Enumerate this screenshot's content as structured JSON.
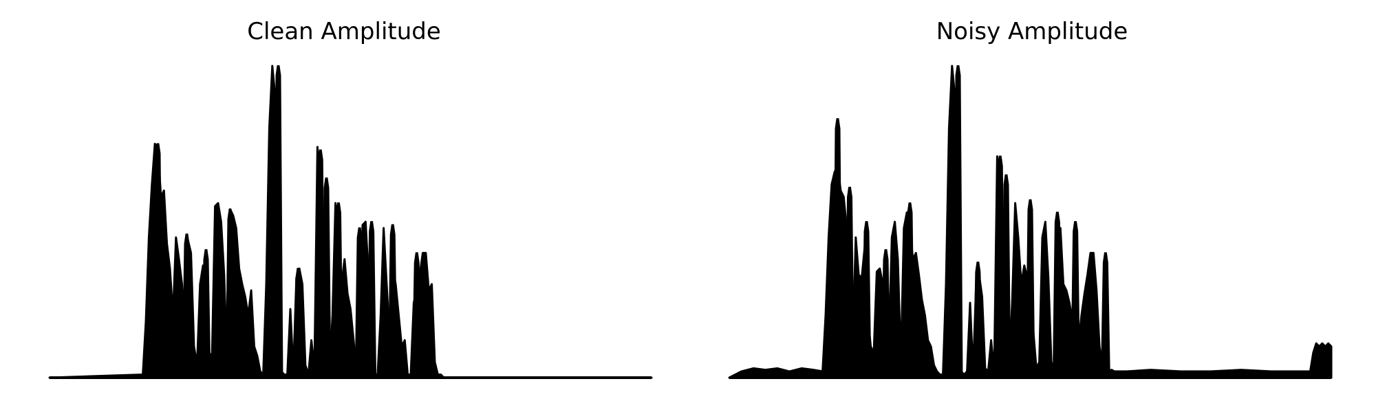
{
  "chart_data": [
    {
      "type": "area",
      "title": "Clean Amplitude",
      "xlabel": "",
      "ylabel": "",
      "axes_visible": false,
      "grid": false,
      "color": "#000000",
      "ylim": [
        0,
        1.0
      ],
      "envelope_x": [
        0,
        0.155,
        0.16,
        0.165,
        0.17,
        0.175,
        0.18,
        0.185,
        0.19,
        0.195,
        0.2,
        0.205,
        0.21,
        0.215,
        0.22,
        0.225,
        0.23,
        0.235,
        0.24,
        0.245,
        0.25,
        0.255,
        0.26,
        0.265,
        0.27,
        0.275,
        0.28,
        0.285,
        0.29,
        0.295,
        0.3,
        0.305,
        0.31,
        0.315,
        0.32,
        0.325,
        0.33,
        0.335,
        0.34,
        0.345,
        0.35,
        0.355,
        0.36,
        0.365,
        0.37,
        0.375,
        0.38,
        0.385,
        0.39,
        0.395,
        0.4,
        0.405,
        0.41,
        0.415,
        0.42,
        0.425,
        0.43,
        0.435,
        0.44,
        0.445,
        0.45,
        0.455,
        0.46,
        0.465,
        0.47,
        0.475,
        0.48,
        0.485,
        0.49,
        0.495,
        0.5,
        0.505,
        0.51,
        0.515,
        0.52,
        0.525,
        0.53,
        0.535,
        0.54,
        0.545,
        0.55,
        0.555,
        0.56,
        0.565,
        0.57,
        0.575,
        0.58,
        0.585,
        0.59,
        0.595,
        0.6,
        0.605,
        0.61,
        0.615,
        0.62,
        0.625,
        0.63,
        0.635,
        0.64,
        0.645,
        0.65,
        0.655,
        0.66,
        0.665,
        0.67,
        0.675,
        0.68,
        0.685,
        0.69,
        0.695,
        0.7,
        0.705,
        0.71,
        0.715,
        0.72,
        0.725,
        0.73,
        0.735,
        0.74,
        0.745,
        0.75,
        0.755,
        0.76,
        0.765,
        0.77,
        0.775,
        0.78,
        0.785,
        0.79,
        0.795,
        0.8,
        0.805,
        0.81,
        0.815,
        0.82,
        0.825,
        0.83,
        0.835,
        0.84,
        0.845,
        0.85,
        0.855,
        0.86,
        0.865,
        0.87,
        0.875,
        1.0
      ],
      "envelope_y": [
        0,
        0.01,
        0.18,
        0.45,
        0.62,
        0.75,
        0.74,
        0.58,
        0.6,
        0.43,
        0.35,
        0.2,
        0.45,
        0.38,
        0.3,
        0.12,
        0.44,
        0.4,
        0.1,
        0.04,
        0.3,
        0.36,
        0.3,
        0.06,
        0.08,
        0.55,
        0.56,
        0.5,
        0.33,
        0.05,
        0.54,
        0.52,
        0.48,
        0.35,
        0.3,
        0.26,
        0.2,
        0.28,
        0.1,
        0.07,
        0.02,
        0.01,
        0.3,
        0.8,
        1.0,
        0.9,
        0.3,
        0.02,
        0.01,
        0.01,
        0.22,
        0.02,
        0.32,
        0.35,
        0.3,
        0.04,
        0.01,
        0.12,
        0.03,
        0.74,
        0.6,
        0.2,
        0.01,
        0.02,
        0.2,
        0.56,
        0.45,
        0.3,
        0.38,
        0.27,
        0.22,
        0.12,
        0.02,
        0.12,
        0.49,
        0.5,
        0.32,
        0.03,
        0.01,
        0.01,
        0.2,
        0.48,
        0.3,
        0.12,
        0.35,
        0.3,
        0.2,
        0.1,
        0.12,
        0.01,
        0.01,
        0.24,
        0.28,
        0.33,
        0.4,
        0.4,
        0.28,
        0.3,
        0.05,
        0.01,
        0.01,
        0.0,
        0.0,
        0.0,
        0.0,
        0.0,
        0.0,
        0.0,
        0.0,
        0.0,
        0.0,
        0.0,
        0.0,
        0.0,
        0.0,
        0.0,
        0.0,
        0.0,
        0.0,
        0.0,
        0.0,
        0.0,
        0.0,
        0.0,
        0.0,
        0.0,
        0.0,
        0.0,
        0.0,
        0.0,
        0.0,
        0.0,
        0.0,
        0.0,
        0.0,
        0.0,
        0.0,
        0.0,
        0.0,
        0.0,
        0.0,
        0.0,
        0.0,
        0.0,
        0.0,
        0.0,
        0.0
      ],
      "spikes": [
        {
          "x": 0.18,
          "y": 0.75
        },
        {
          "x": 0.228,
          "y": 0.46
        },
        {
          "x": 0.26,
          "y": 0.41
        },
        {
          "x": 0.3,
          "y": 0.54
        },
        {
          "x": 0.38,
          "y": 1.0
        },
        {
          "x": 0.413,
          "y": 0.35
        },
        {
          "x": 0.45,
          "y": 0.73
        },
        {
          "x": 0.46,
          "y": 0.64
        },
        {
          "x": 0.48,
          "y": 0.56
        },
        {
          "x": 0.515,
          "y": 0.48
        },
        {
          "x": 0.535,
          "y": 0.5
        },
        {
          "x": 0.57,
          "y": 0.49
        },
        {
          "x": 0.61,
          "y": 0.4
        },
        {
          "x": 0.625,
          "y": 0.29
        }
      ]
    },
    {
      "type": "area",
      "title": "Noisy Amplitude",
      "xlabel": "",
      "ylabel": "",
      "axes_visible": false,
      "grid": false,
      "color": "#000000",
      "ylim": [
        0,
        1.0
      ],
      "envelope_x": [
        0,
        0.02,
        0.04,
        0.06,
        0.08,
        0.1,
        0.12,
        0.14,
        0.155,
        0.16,
        0.165,
        0.17,
        0.175,
        0.18,
        0.185,
        0.19,
        0.195,
        0.2,
        0.205,
        0.21,
        0.215,
        0.22,
        0.225,
        0.23,
        0.235,
        0.24,
        0.245,
        0.25,
        0.255,
        0.26,
        0.265,
        0.27,
        0.275,
        0.28,
        0.285,
        0.29,
        0.295,
        0.3,
        0.305,
        0.31,
        0.315,
        0.32,
        0.325,
        0.33,
        0.335,
        0.34,
        0.345,
        0.35,
        0.355,
        0.36,
        0.365,
        0.37,
        0.375,
        0.38,
        0.385,
        0.39,
        0.395,
        0.4,
        0.405,
        0.41,
        0.415,
        0.42,
        0.425,
        0.43,
        0.435,
        0.44,
        0.445,
        0.45,
        0.455,
        0.46,
        0.465,
        0.47,
        0.475,
        0.48,
        0.485,
        0.49,
        0.495,
        0.5,
        0.505,
        0.51,
        0.515,
        0.52,
        0.525,
        0.53,
        0.535,
        0.54,
        0.545,
        0.55,
        0.555,
        0.56,
        0.565,
        0.57,
        0.575,
        0.58,
        0.585,
        0.59,
        0.595,
        0.6,
        0.605,
        0.61,
        0.615,
        0.62,
        0.625,
        0.63,
        0.635,
        0.64,
        0.66,
        0.7,
        0.75,
        0.8,
        0.85,
        0.9,
        0.93,
        0.95,
        0.965,
        0.97,
        0.975,
        0.98,
        0.985,
        0.99,
        0.995,
        1.0
      ],
      "envelope_y": [
        0,
        0.02,
        0.03,
        0.025,
        0.03,
        0.02,
        0.03,
        0.025,
        0.02,
        0.2,
        0.45,
        0.62,
        0.66,
        0.68,
        0.6,
        0.58,
        0.48,
        0.36,
        0.1,
        0.45,
        0.33,
        0.32,
        0.42,
        0.2,
        0.1,
        0.08,
        0.34,
        0.35,
        0.3,
        0.05,
        0.1,
        0.45,
        0.5,
        0.38,
        0.05,
        0.48,
        0.53,
        0.48,
        0.38,
        0.4,
        0.33,
        0.25,
        0.2,
        0.12,
        0.1,
        0.04,
        0.02,
        0.01,
        0.01,
        0.3,
        0.8,
        1.0,
        0.9,
        0.3,
        0.02,
        0.01,
        0.02,
        0.24,
        0.02,
        0.3,
        0.33,
        0.26,
        0.03,
        0.02,
        0.12,
        0.02,
        0.71,
        0.6,
        0.2,
        0.02,
        0.02,
        0.25,
        0.56,
        0.45,
        0.3,
        0.36,
        0.32,
        0.25,
        0.15,
        0.03,
        0.05,
        0.45,
        0.5,
        0.32,
        0.05,
        0.03,
        0.08,
        0.48,
        0.3,
        0.28,
        0.24,
        0.18,
        0.12,
        0.1,
        0.2,
        0.27,
        0.33,
        0.4,
        0.4,
        0.28,
        0.1,
        0.03,
        0.02,
        0.02,
        0.025,
        0.02,
        0.02,
        0.025,
        0.02,
        0.02,
        0.025,
        0.02,
        0.02,
        0.02,
        0.02,
        0.08,
        0.11,
        0.1,
        0.11,
        0.1,
        0.11,
        0.1
      ],
      "spikes": [
        {
          "x": 0.18,
          "y": 0.83
        },
        {
          "x": 0.2,
          "y": 0.61
        },
        {
          "x": 0.228,
          "y": 0.5
        },
        {
          "x": 0.26,
          "y": 0.41
        },
        {
          "x": 0.3,
          "y": 0.56
        },
        {
          "x": 0.38,
          "y": 1.0
        },
        {
          "x": 0.413,
          "y": 0.37
        },
        {
          "x": 0.45,
          "y": 0.71
        },
        {
          "x": 0.46,
          "y": 0.65
        },
        {
          "x": 0.5,
          "y": 0.57
        },
        {
          "x": 0.545,
          "y": 0.53
        },
        {
          "x": 0.575,
          "y": 0.5
        },
        {
          "x": 0.6,
          "y": 0.37
        },
        {
          "x": 0.625,
          "y": 0.4
        }
      ]
    }
  ]
}
